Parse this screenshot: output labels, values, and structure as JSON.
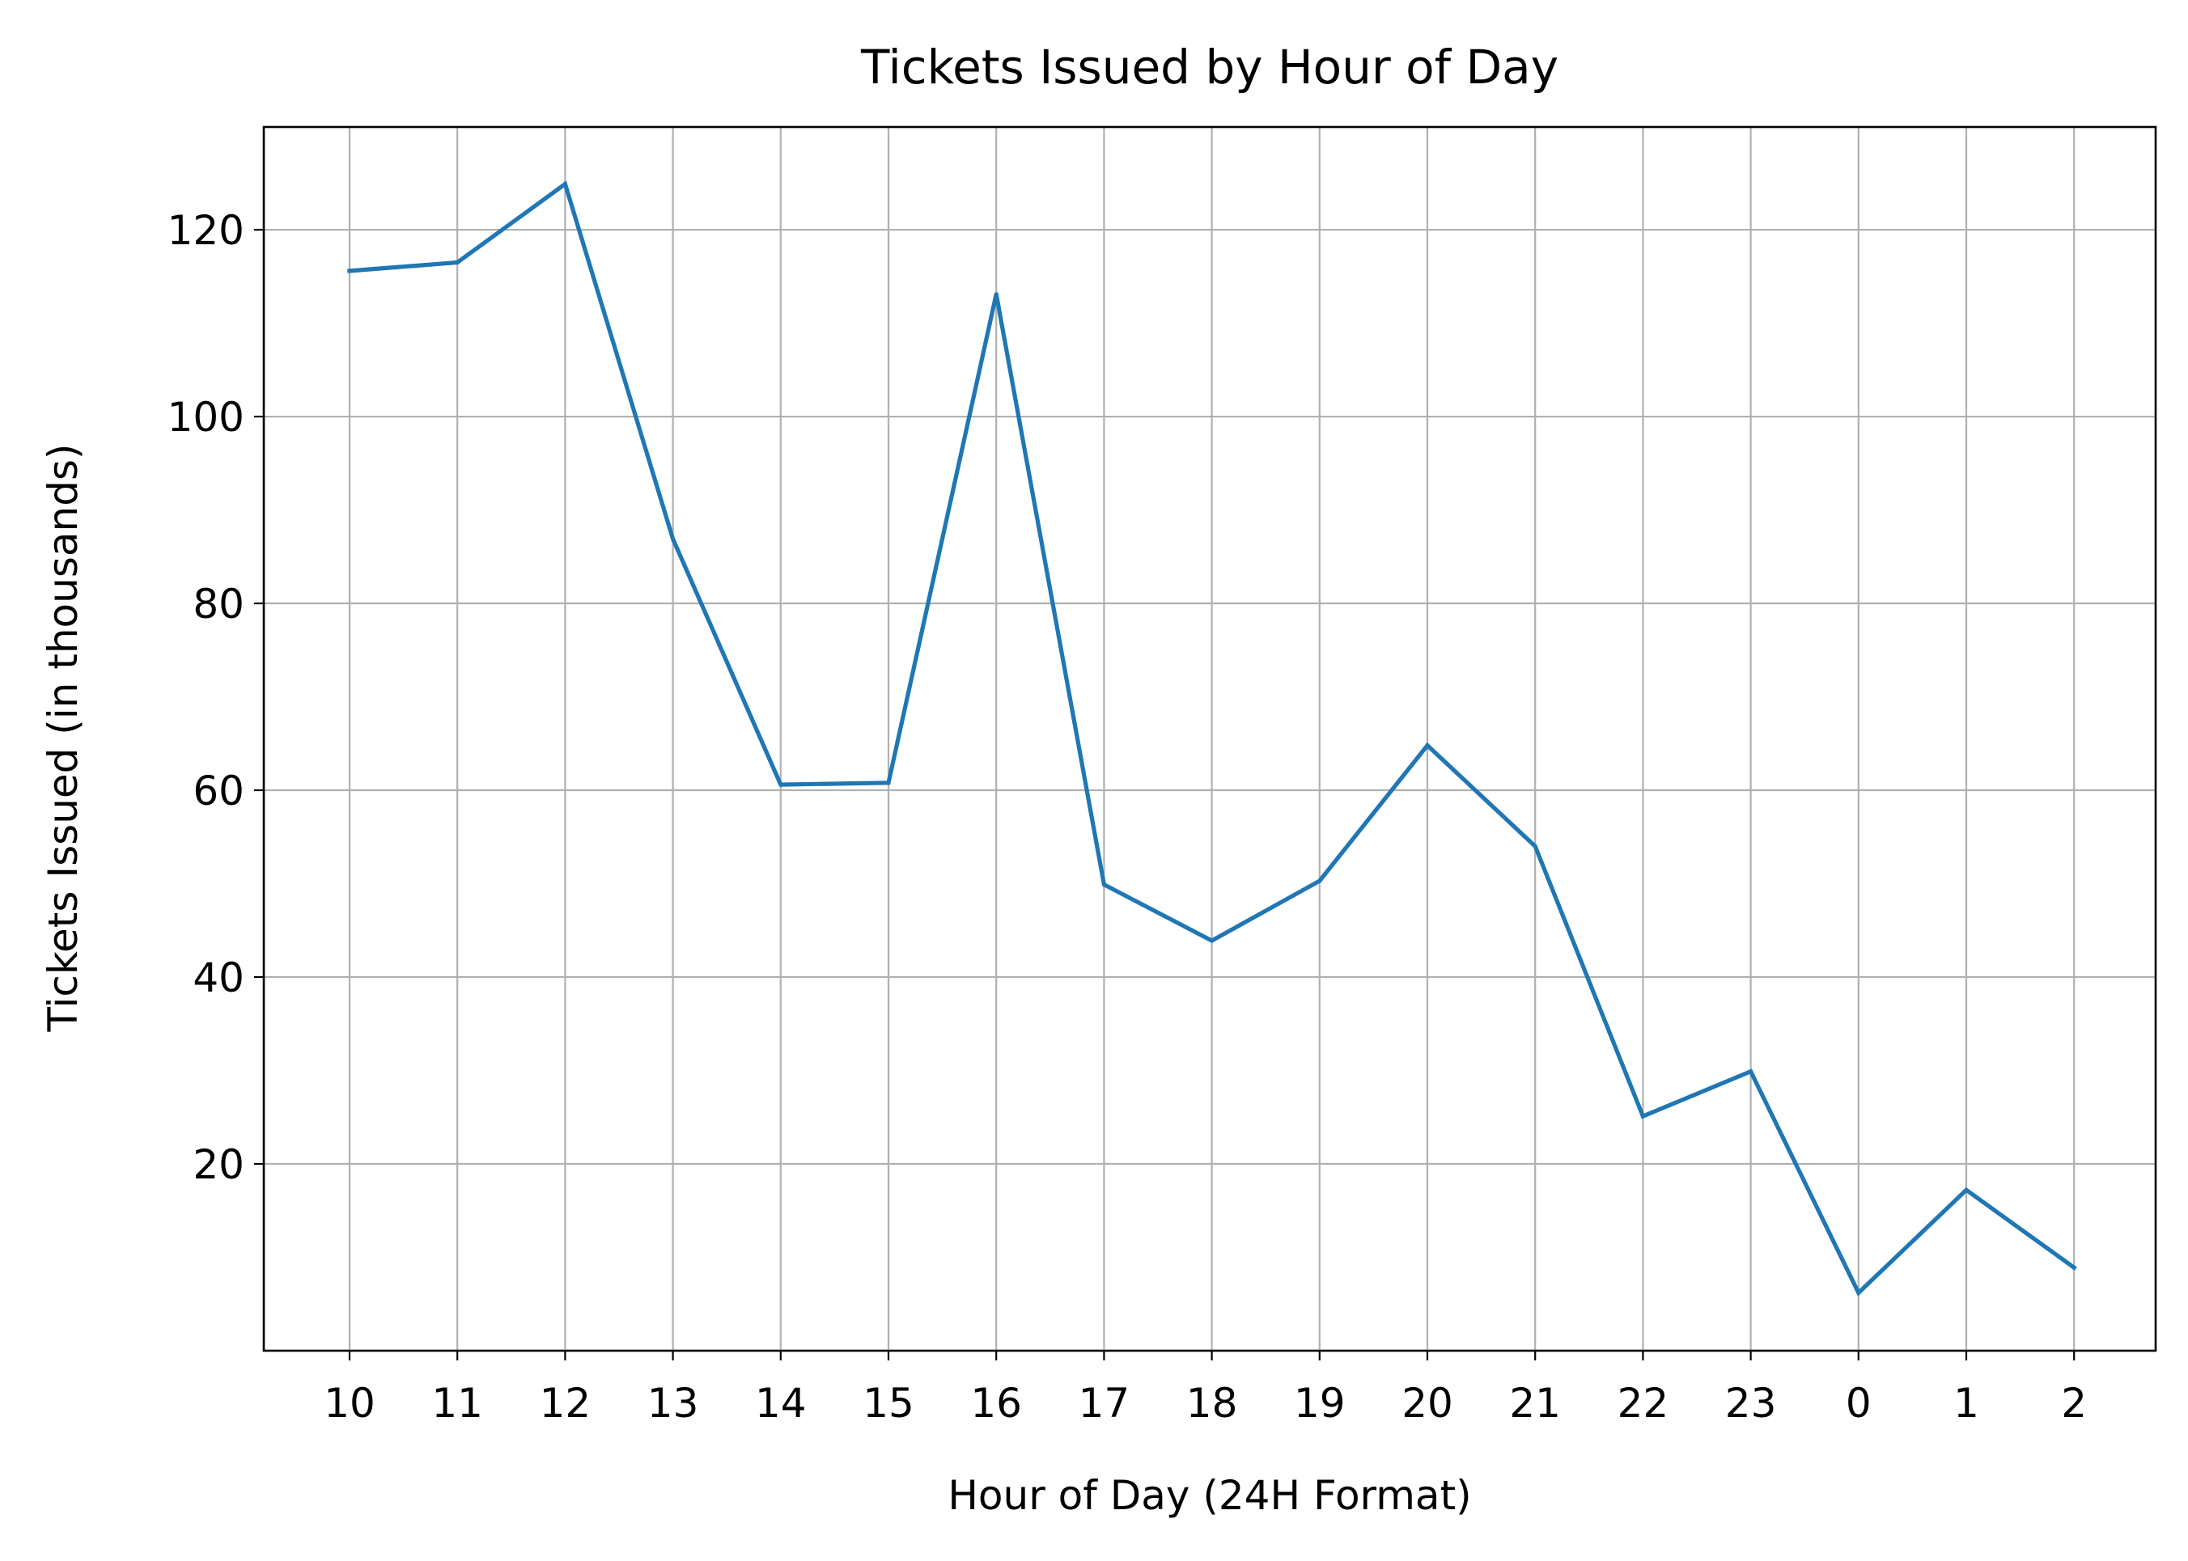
{
  "chart_data": {
    "type": "line",
    "title": "Tickets Issued by Hour of Day",
    "xlabel": "Hour of Day (24H Format)",
    "ylabel": "Tickets Issued (in thousands)",
    "categories": [
      "10",
      "11",
      "12",
      "13",
      "14",
      "15",
      "16",
      "17",
      "18",
      "19",
      "20",
      "21",
      "22",
      "23",
      "0",
      "1",
      "2"
    ],
    "series": [
      {
        "values": [
          115.6,
          116.5,
          124.9,
          86.9,
          60.6,
          60.8,
          113.1,
          49.9,
          43.9,
          50.3,
          64.8,
          54.0,
          25.1,
          29.9,
          6.2,
          17.2,
          8.9
        ]
      }
    ],
    "yticks": [
      20,
      40,
      60,
      80,
      100,
      120
    ],
    "ylim": [
      0,
      131
    ],
    "grid": true,
    "legend": "none",
    "colors": {
      "line": "#1f77b4",
      "grid": "#b0b0b0",
      "axes": "#000000"
    }
  }
}
